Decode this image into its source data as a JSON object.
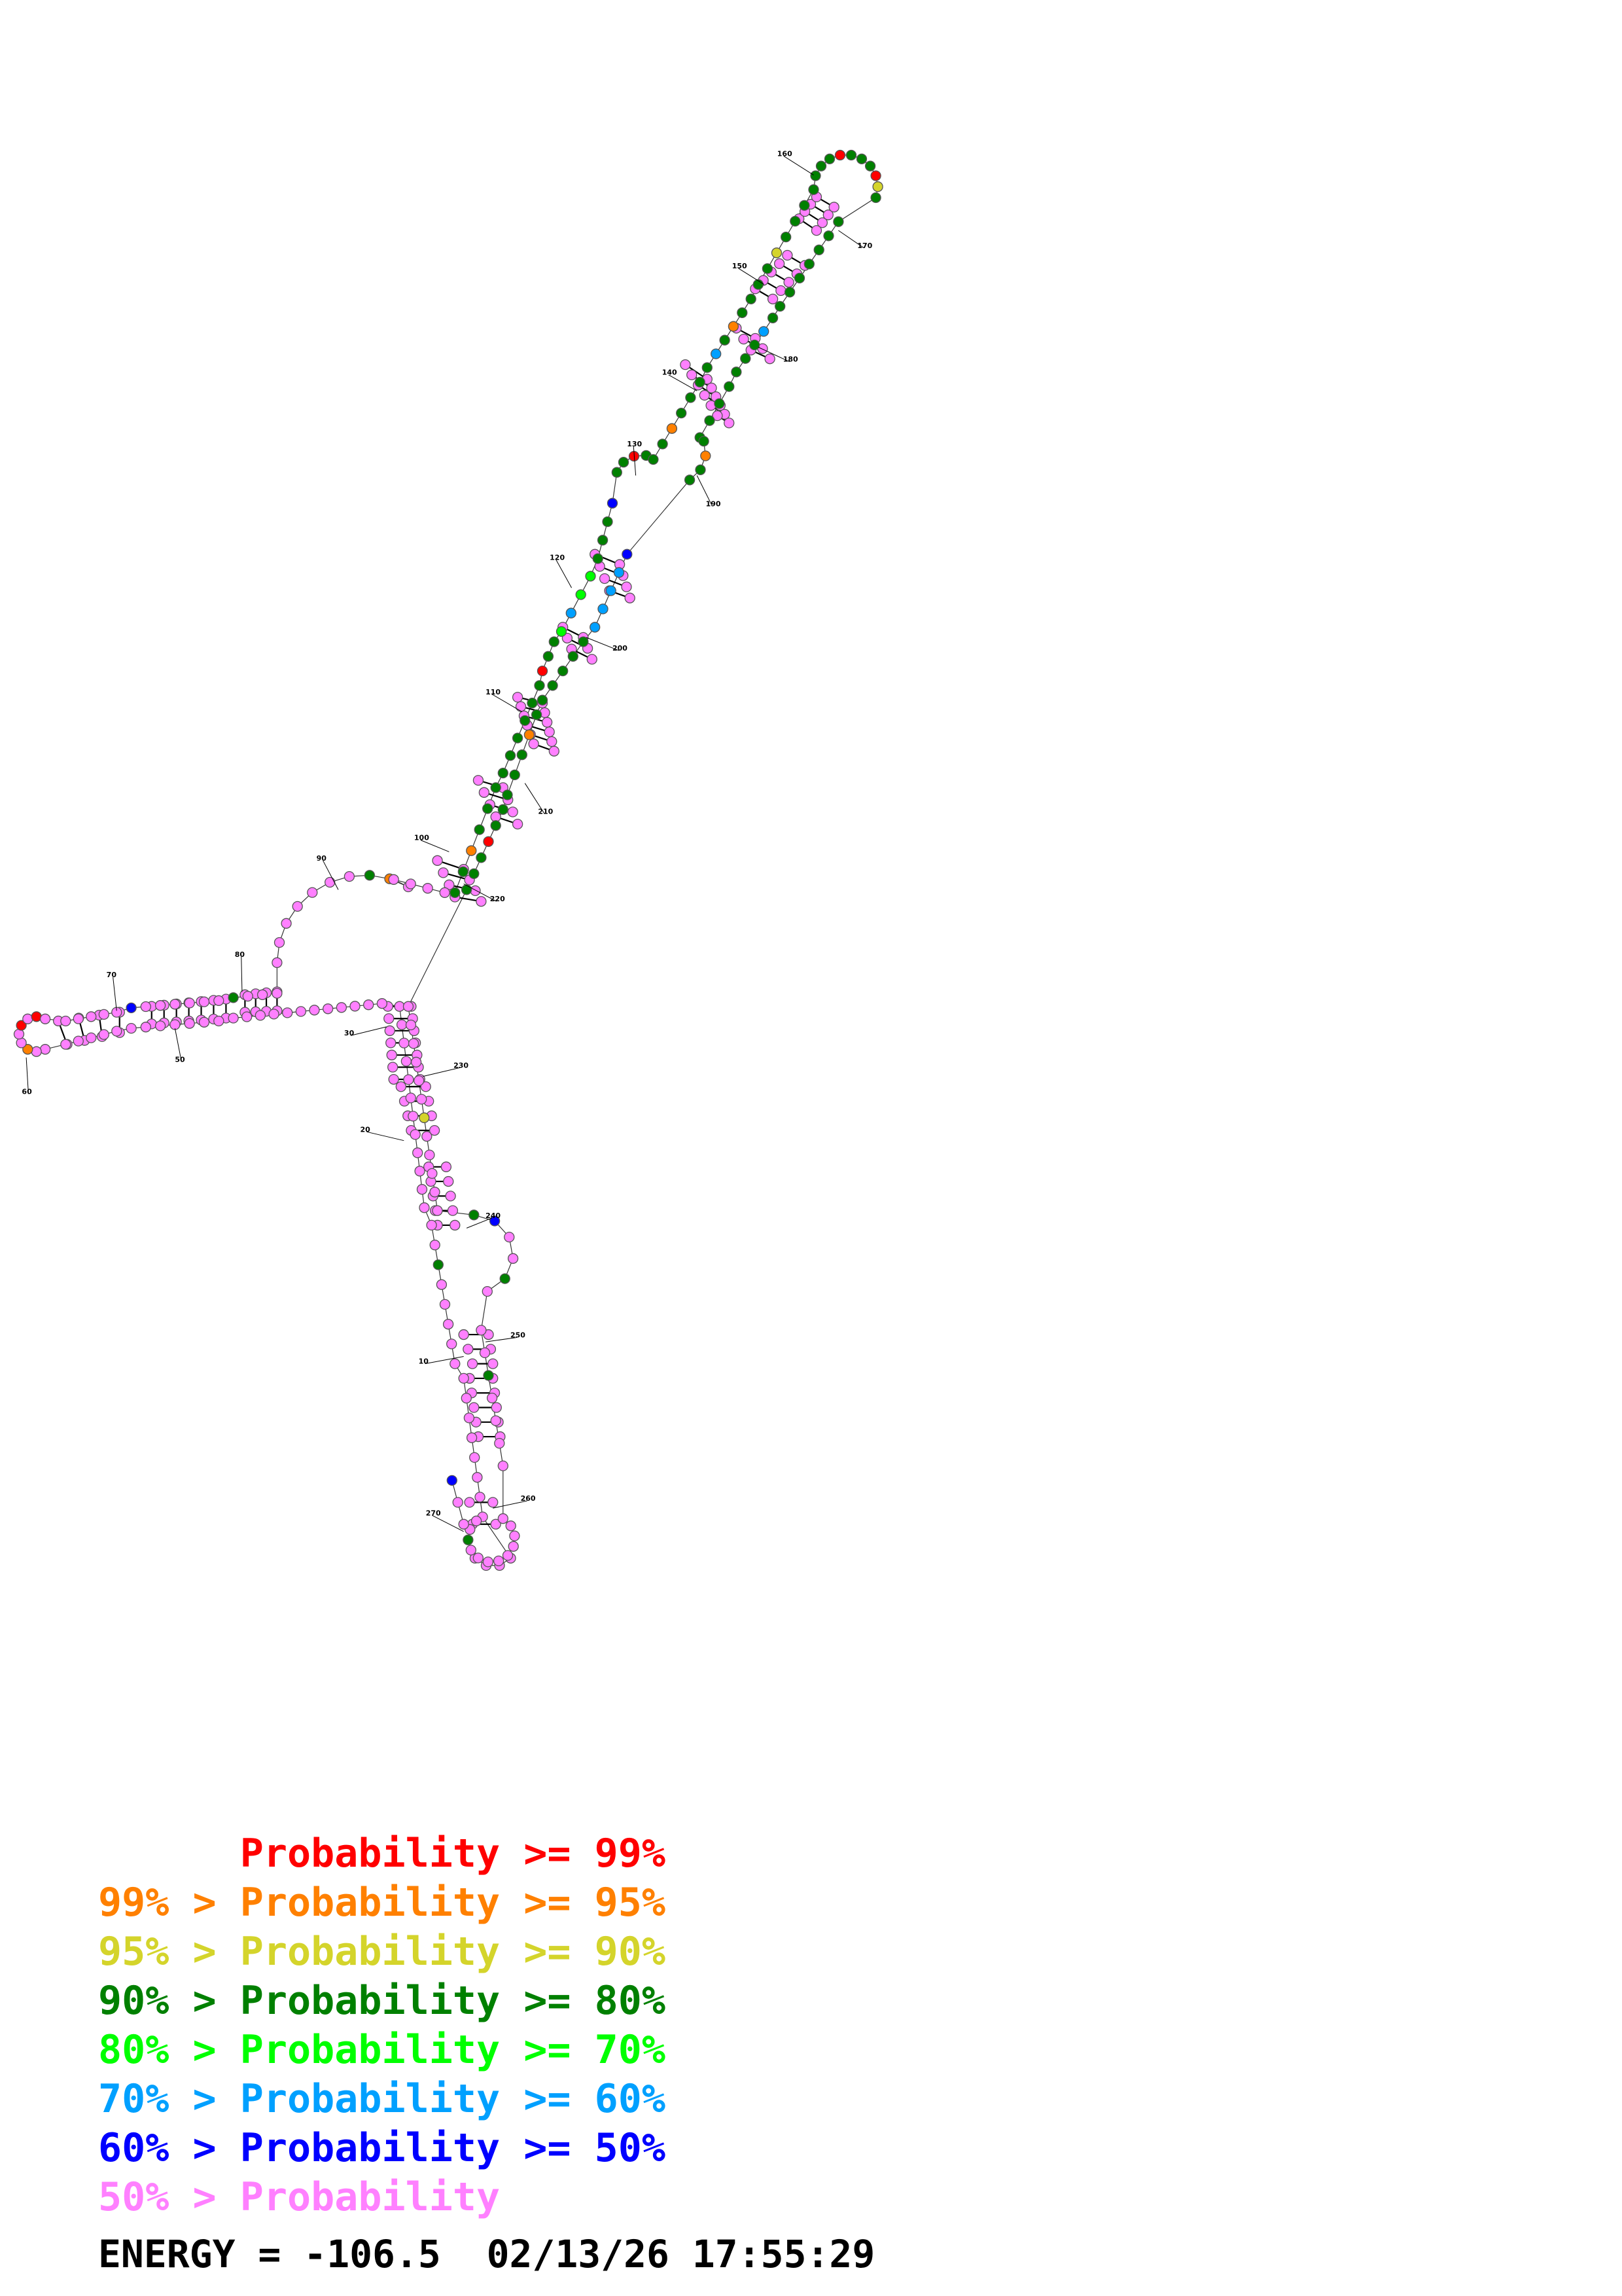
{
  "colors": {
    "p99": "#ff0000",
    "p95": "#ff8000",
    "p90": "#d4d42b",
    "p80": "#008000",
    "p70": "#00ff00",
    "p60": "#00a0ff",
    "p50": "#0000ff",
    "p0": "#ff80ff"
  },
  "position_labels": [
    "10",
    "20",
    "30",
    "50",
    "60",
    "70",
    "80",
    "90",
    "100",
    "110",
    "120",
    "130",
    "140",
    "150",
    "160",
    "170",
    "180",
    "190",
    "200",
    "210",
    "220",
    "230",
    "240",
    "250",
    "260",
    "270"
  ],
  "legend": [
    {
      "prefix": "    ",
      "text": "Probability >= 99%",
      "color_key": "p99"
    },
    {
      "prefix": "99% > ",
      "text": "Probability >= 95%",
      "color_key": "p95"
    },
    {
      "prefix": "95% > ",
      "text": "Probability >= 90%",
      "color_key": "p90"
    },
    {
      "prefix": "90% > ",
      "text": "Probability >= 80%",
      "color_key": "p80"
    },
    {
      "prefix": "80% > ",
      "text": "Probability >= 70%",
      "color_key": "p70"
    },
    {
      "prefix": "70% > ",
      "text": "Probability >= 60%",
      "color_key": "p60"
    },
    {
      "prefix": "60% > ",
      "text": "Probability >= 50%",
      "color_key": "p50"
    },
    {
      "prefix": "50% > ",
      "text": "Probability",
      "color_key": "p0"
    }
  ],
  "legend_text": {
    "l0": "      Probability >= 99%",
    "l1": "99% > Probability >= 95%",
    "l2": "95% > Probability >= 90%",
    "l3": "90% > Probability >= 80%",
    "l4": "80% > Probability >= 70%",
    "l5": "70% > Probability >= 60%",
    "l6": "60% > Probability >= 50%",
    "l7": "50% > Probability"
  },
  "energy_line": "ENERGY = -106.5  02/13/26 17:55:29"
}
